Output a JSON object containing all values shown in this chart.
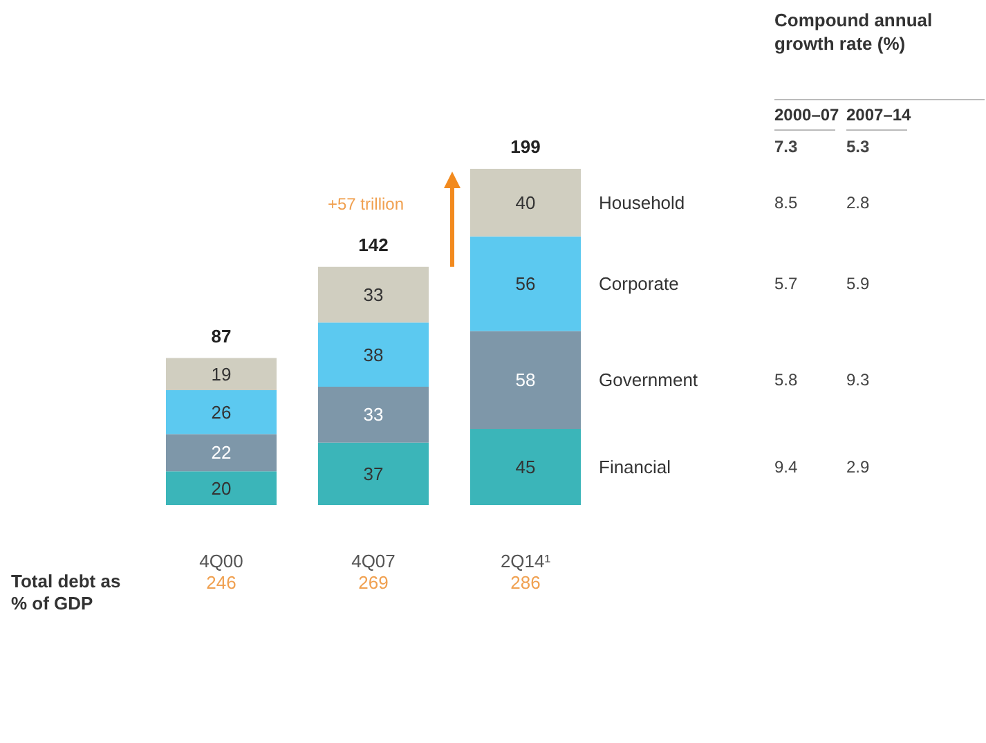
{
  "chart_data": {
    "type": "bar",
    "stacked": true,
    "data_labels": true,
    "categories": [
      "4Q00",
      "4Q07",
      "2Q14¹"
    ],
    "series": [
      {
        "name": "Financial",
        "color": "#3bb5b9",
        "values": [
          20,
          37,
          45
        ]
      },
      {
        "name": "Government",
        "color": "#7e97a9",
        "values": [
          22,
          33,
          58
        ]
      },
      {
        "name": "Corporate",
        "color": "#5cc9f0",
        "values": [
          26,
          38,
          56
        ]
      },
      {
        "name": "Household",
        "color": "#d0cec0",
        "values": [
          19,
          33,
          40
        ]
      }
    ],
    "totals": [
      "87",
      "142",
      "199"
    ],
    "annotations": [
      "Compound annual growth rate (%)",
      "2000–07",
      "2007–14",
      "7.3",
      "5.3",
      "8.5",
      "2.8",
      "5.7",
      "5.9",
      "5.8",
      "9.3",
      "9.4",
      "2.9",
      "Total debt as % of GDP",
      "246",
      "269",
      "286",
      "+57 trillion"
    ]
  }
}
